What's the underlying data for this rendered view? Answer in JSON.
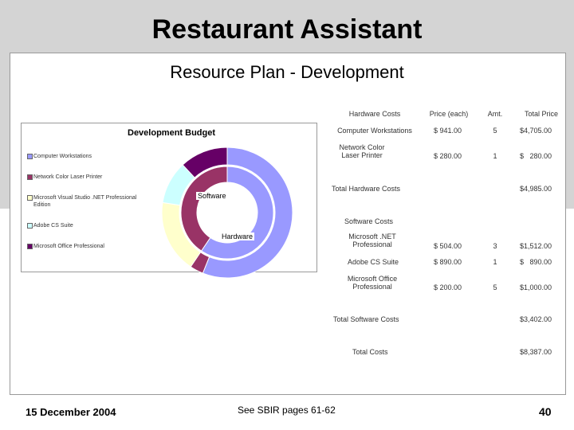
{
  "slide": {
    "title": "Restaurant Assistant",
    "subtitle": "Resource Plan - Development"
  },
  "chart_data": {
    "type": "pie",
    "title": "Development Budget",
    "variant": "nested-donut",
    "rings": [
      {
        "name": "Software",
        "position": "inner",
        "categories": [
          "Hardware",
          "Software"
        ],
        "values": [
          4985,
          3402
        ]
      },
      {
        "name": "Hardware",
        "position": "outer",
        "categories": [
          "Computer Workstations",
          "Network Color Laser Printer",
          "Microsoft Visual Studio .NET Professional Edition",
          "Adobe CS Suite",
          "Microsoft Office Professional"
        ],
        "values": [
          4705,
          280,
          1512,
          890,
          1000
        ]
      }
    ],
    "legend": [
      "Computer Workstations",
      "Network Color Laser Printer",
      "Microsoft Visual Studio .NET Professional Edition",
      "Adobe CS Suite",
      "Microsoft Office Professional"
    ],
    "legend_placement": "left",
    "colors": [
      "#9999ff",
      "#993366",
      "#ffffcc",
      "#ccffff",
      "#660066"
    ]
  },
  "table": {
    "headers": {
      "item": "Hardware Costs",
      "price": "Price (each)",
      "amt": "Amt.",
      "total": "Total Price"
    },
    "hardware_rows": [
      {
        "item": "Computer Workstations",
        "price": "$ 941.00",
        "amt": "5",
        "total": "$4,705.00"
      },
      {
        "item": "Network Color Laser Printer",
        "price": "$ 280.00",
        "amt": "1",
        "total": "$   280.00"
      }
    ],
    "hardware_total_label": "Total Hardware Costs",
    "hardware_total": "$4,985.00",
    "software_header": "Software Costs",
    "software_rows": [
      {
        "item": "Microsoft .NET Professional",
        "price": "$ 504.00",
        "amt": "3",
        "total": "$1,512.00"
      },
      {
        "item": "Adobe CS Suite",
        "price": "$ 890.00",
        "amt": "1",
        "total": "$   890.00"
      },
      {
        "item": "Microsoft Office Professional",
        "price": "$ 200.00",
        "amt": "5",
        "total": "$1,000.00"
      }
    ],
    "software_total_label": "Total Software Costs",
    "software_total": "$3,402.00",
    "grand_total_label": "Total Costs",
    "grand_total": "$8,387.00"
  },
  "footer": {
    "date": "15 December 2004",
    "note": "See SBIR pages 61-62",
    "page": "40"
  }
}
